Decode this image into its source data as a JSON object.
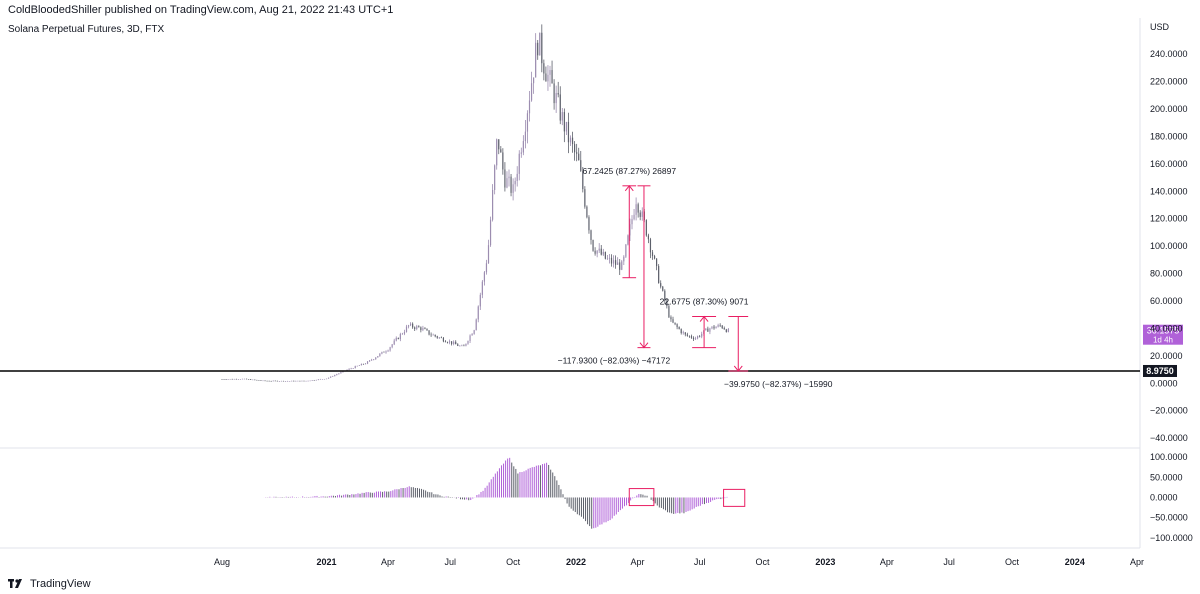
{
  "header": {
    "publisher": "ColdBloodedShiller published on TradingView.com, Aug 21, 2022 21:43 UTC+1",
    "symbol": "Solana Perpetual Futures, 3D, FTX"
  },
  "footer": {
    "brand": "TradingView",
    "logo_icon": "tradingview-logo-icon"
  },
  "chart_data": [
    {
      "type": "candlestick",
      "currency": "USD",
      "y_ticks": [
        "240.0000",
        "220.0000",
        "200.0000",
        "180.0000",
        "160.0000",
        "140.0000",
        "120.0000",
        "100.0000",
        "80.0000",
        "60.0000",
        "40.0000",
        "20.0000",
        "0.0000",
        "−20.0000",
        "−40.0000"
      ],
      "ylim": [
        -45,
        262
      ],
      "x_labels": [
        "Aug",
        "2021",
        "Apr",
        "Jul",
        "Oct",
        "2022",
        "Apr",
        "Jul",
        "Oct",
        "2023",
        "Apr",
        "Jul",
        "Oct",
        "2024",
        "Apr"
      ],
      "price_series": [
        [
          "2020-08-01",
          3.0
        ],
        [
          "2020-09-01",
          3.2
        ],
        [
          "2020-10-01",
          1.8
        ],
        [
          "2020-11-01",
          1.6
        ],
        [
          "2020-12-01",
          1.7
        ],
        [
          "2021-01-01",
          3.5
        ],
        [
          "2021-02-01",
          10
        ],
        [
          "2021-03-01",
          15
        ],
        [
          "2021-04-01",
          25
        ],
        [
          "2021-05-01",
          42
        ],
        [
          "2021-05-20",
          40
        ],
        [
          "2021-06-01",
          36
        ],
        [
          "2021-07-01",
          30
        ],
        [
          "2021-07-20",
          26
        ],
        [
          "2021-08-05",
          40
        ],
        [
          "2021-08-25",
          95
        ],
        [
          "2021-09-08",
          180
        ],
        [
          "2021-09-18",
          150
        ],
        [
          "2021-10-01",
          140
        ],
        [
          "2021-10-20",
          195
        ],
        [
          "2021-11-06",
          250
        ],
        [
          "2021-11-20",
          225
        ],
        [
          "2021-12-01",
          210
        ],
        [
          "2021-12-20",
          180
        ],
        [
          "2022-01-05",
          160
        ],
        [
          "2022-01-25",
          100
        ],
        [
          "2022-02-15",
          90
        ],
        [
          "2022-03-10",
          85
        ],
        [
          "2022-03-30",
          135
        ],
        [
          "2022-04-15",
          110
        ],
        [
          "2022-05-05",
          70
        ],
        [
          "2022-05-20",
          45
        ],
        [
          "2022-06-10",
          35
        ],
        [
          "2022-06-25",
          33
        ],
        [
          "2022-07-15",
          40
        ],
        [
          "2022-08-01",
          42
        ],
        [
          "2022-08-12",
          38
        ]
      ],
      "last_price": {
        "value": "36.1575",
        "sublabel": "1d 4h"
      },
      "support_line": {
        "value": "8.9750",
        "color": "#000000"
      },
      "measurements": [
        {
          "label": "67.2425 (87.27%) 26897",
          "from": 77,
          "to": 144,
          "x_from": "2022-03-10",
          "x_to": "2022-03-30"
        },
        {
          "label": "−117.9300 (−82.03%) −47172",
          "from": 144,
          "to": 26,
          "x_from": "2022-04-01",
          "x_to": "2022-04-20"
        },
        {
          "label": "22.6775 (87.30%) 9071",
          "from": 26,
          "to": 48.7,
          "x_from": "2022-06-20",
          "x_to": "2022-07-25"
        },
        {
          "label": "−39.9750 (−82.37%) −15990",
          "from": 48.7,
          "to": 8.975,
          "x_from": "2022-08-12",
          "x_to": "2022-09-10"
        }
      ],
      "accent_color": "#e91e63"
    },
    {
      "type": "histogram",
      "y_ticks": [
        "100.0000",
        "50.0000",
        "0.0000",
        "−50.0000",
        "−100.0000"
      ],
      "ylim": [
        -115,
        105
      ],
      "bull_color": "#b061d8",
      "bear_color": "#5d606b",
      "series": [
        [
          "2020-10-01",
          0
        ],
        [
          "2020-11-15",
          1
        ],
        [
          "2021-01-01",
          3
        ],
        [
          "2021-02-01",
          7
        ],
        [
          "2021-03-01",
          12
        ],
        [
          "2021-04-01",
          15
        ],
        [
          "2021-05-01",
          27
        ],
        [
          "2021-05-20",
          20
        ],
        [
          "2021-06-15",
          5
        ],
        [
          "2021-07-15",
          -3
        ],
        [
          "2021-08-01",
          -6
        ],
        [
          "2021-08-20",
          20
        ],
        [
          "2021-09-10",
          70
        ],
        [
          "2021-09-25",
          100
        ],
        [
          "2021-10-08",
          60
        ],
        [
          "2021-10-30",
          75
        ],
        [
          "2021-11-20",
          85
        ],
        [
          "2021-12-05",
          40
        ],
        [
          "2021-12-20",
          -20
        ],
        [
          "2022-01-10",
          -50
        ],
        [
          "2022-01-25",
          -78
        ],
        [
          "2022-02-20",
          -55
        ],
        [
          "2022-03-15",
          -20
        ],
        [
          "2022-04-01",
          8
        ],
        [
          "2022-04-15",
          5
        ],
        [
          "2022-05-01",
          -22
        ],
        [
          "2022-05-20",
          -40
        ],
        [
          "2022-06-10",
          -38
        ],
        [
          "2022-07-01",
          -20
        ],
        [
          "2022-07-25",
          -5
        ],
        [
          "2022-08-12",
          1
        ]
      ],
      "highlight_boxes": [
        {
          "x_from": "2022-03-20",
          "x_to": "2022-04-25",
          "from": -20,
          "to": 22
        },
        {
          "x_from": "2022-08-05",
          "x_to": "2022-09-05",
          "from": -22,
          "to": 20
        }
      ]
    }
  ]
}
